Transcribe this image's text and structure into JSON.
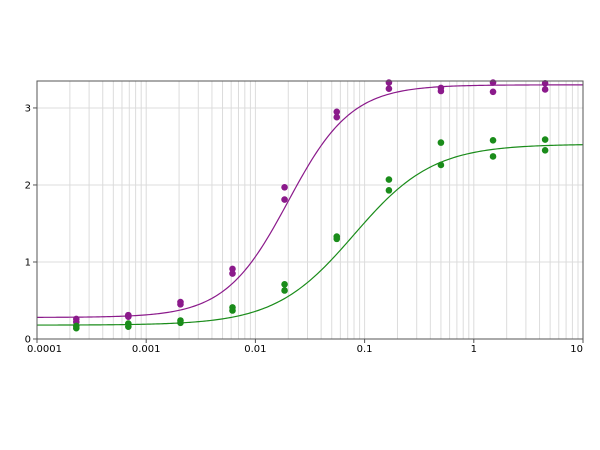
{
  "chart_data": {
    "type": "scatter",
    "title": "",
    "xlabel": "",
    "ylabel": "",
    "x_scale": "log",
    "xlim": [
      0.0001,
      10
    ],
    "ylim": [
      0,
      3.35
    ],
    "grid": true,
    "x_ticks": [
      {
        "value": 0.0001,
        "label": "0.0001"
      },
      {
        "value": 0.001,
        "label": "0.001"
      },
      {
        "value": 0.01,
        "label": "0.01"
      },
      {
        "value": 0.1,
        "label": "0.1"
      },
      {
        "value": 1,
        "label": "1"
      },
      {
        "value": 10,
        "label": "10"
      }
    ],
    "y_ticks": [
      {
        "value": 0,
        "label": "0"
      },
      {
        "value": 1,
        "label": "1"
      },
      {
        "value": 2,
        "label": "2"
      },
      {
        "value": 3,
        "label": "3"
      }
    ],
    "series": [
      {
        "color": "#8b1a8b",
        "fit_curve": {
          "bottom": 0.28,
          "top": 3.3,
          "ec50": 0.02,
          "hill": 1.5
        },
        "points": [
          {
            "x": 0.000229,
            "y": 0.26
          },
          {
            "x": 0.000229,
            "y": 0.22
          },
          {
            "x": 0.000686,
            "y": 0.31
          },
          {
            "x": 0.000686,
            "y": 0.29
          },
          {
            "x": 0.00206,
            "y": 0.48
          },
          {
            "x": 0.00206,
            "y": 0.45
          },
          {
            "x": 0.00617,
            "y": 0.91
          },
          {
            "x": 0.00617,
            "y": 0.85
          },
          {
            "x": 0.0185,
            "y": 1.97
          },
          {
            "x": 0.0185,
            "y": 1.81
          },
          {
            "x": 0.0556,
            "y": 2.95
          },
          {
            "x": 0.0556,
            "y": 2.88
          },
          {
            "x": 0.167,
            "y": 3.33
          },
          {
            "x": 0.167,
            "y": 3.25
          },
          {
            "x": 0.5,
            "y": 3.26
          },
          {
            "x": 0.5,
            "y": 3.22
          },
          {
            "x": 1.5,
            "y": 3.33
          },
          {
            "x": 1.5,
            "y": 3.21
          },
          {
            "x": 4.5,
            "y": 3.32
          },
          {
            "x": 4.5,
            "y": 3.24
          }
        ]
      },
      {
        "color": "#1a8c1a",
        "fit_curve": {
          "bottom": 0.18,
          "top": 2.53,
          "ec50": 0.08,
          "hill": 1.2
        },
        "points": [
          {
            "x": 0.000229,
            "y": 0.17
          },
          {
            "x": 0.000229,
            "y": 0.14
          },
          {
            "x": 0.000686,
            "y": 0.2
          },
          {
            "x": 0.000686,
            "y": 0.16
          },
          {
            "x": 0.00206,
            "y": 0.24
          },
          {
            "x": 0.00206,
            "y": 0.21
          },
          {
            "x": 0.00617,
            "y": 0.41
          },
          {
            "x": 0.00617,
            "y": 0.37
          },
          {
            "x": 0.0185,
            "y": 0.71
          },
          {
            "x": 0.0185,
            "y": 0.63
          },
          {
            "x": 0.0556,
            "y": 1.33
          },
          {
            "x": 0.0556,
            "y": 1.3
          },
          {
            "x": 0.167,
            "y": 2.07
          },
          {
            "x": 0.167,
            "y": 1.93
          },
          {
            "x": 0.5,
            "y": 2.55
          },
          {
            "x": 0.5,
            "y": 2.26
          },
          {
            "x": 1.5,
            "y": 2.58
          },
          {
            "x": 1.5,
            "y": 2.37
          },
          {
            "x": 4.5,
            "y": 2.59
          },
          {
            "x": 4.5,
            "y": 2.45
          }
        ]
      }
    ]
  }
}
